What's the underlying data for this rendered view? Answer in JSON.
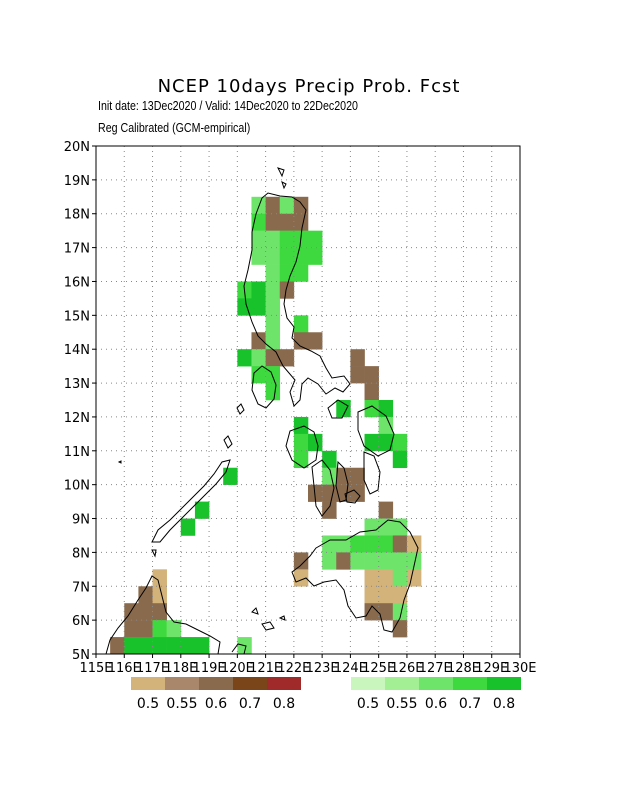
{
  "title": "NCEP 10days Precip Prob. Fcst",
  "subtitle1": "Init date: 13Dec2020 / Valid: 14Dec2020 to 22Dec2020",
  "subtitle2": "Reg Calibrated (GCM-empirical)",
  "map": {
    "lon_range": [
      115,
      130
    ],
    "lat_range": [
      5,
      20
    ],
    "grid": "dotted 1-degree",
    "lat_labels": [
      "5N",
      "6N",
      "7N",
      "8N",
      "9N",
      "10N",
      "11N",
      "12N",
      "13N",
      "14N",
      "15N",
      "16N",
      "17N",
      "18N",
      "19N",
      "20N"
    ],
    "lon_labels": [
      "115E",
      "116E",
      "117E",
      "118E",
      "119E",
      "120E",
      "121E",
      "122E",
      "123E",
      "124E",
      "125E",
      "126E",
      "127E",
      "128E",
      "129E",
      "130E"
    ],
    "cell_size_deg": 0.5
  },
  "legend_dry": {
    "colors": [
      "#d3b37a",
      "#a8876a",
      "#8a6a4d",
      "#7a4519",
      "#a02a2a"
    ],
    "labels": [
      "0.5",
      "0.55",
      "0.6",
      "0.7",
      "0.8"
    ]
  },
  "legend_wet": {
    "colors": [
      "#c8f6bc",
      "#a3ef93",
      "#6ee56a",
      "#3ed93e",
      "#18c22a"
    ],
    "labels": [
      "0.5",
      "0.55",
      "0.6",
      "0.7",
      "0.8"
    ]
  },
  "cells": [
    [
      120.5,
      18,
      3
    ],
    [
      121,
      18,
      2
    ],
    [
      121.5,
      18,
      3
    ],
    [
      122,
      18,
      2
    ],
    [
      120.5,
      17.5,
      4
    ],
    [
      121,
      17.5,
      2
    ],
    [
      121.5,
      17.5,
      2
    ],
    [
      122,
      17.5,
      2
    ],
    [
      120.5,
      17,
      3
    ],
    [
      121,
      17,
      3
    ],
    [
      121.5,
      17,
      4
    ],
    [
      122,
      17,
      4
    ],
    [
      122.5,
      17,
      4
    ],
    [
      120.5,
      16.5,
      3
    ],
    [
      121,
      16.5,
      3
    ],
    [
      121.5,
      16.5,
      4
    ],
    [
      122,
      16.5,
      4
    ],
    [
      122.5,
      16.5,
      4
    ],
    [
      121,
      16,
      3
    ],
    [
      121.5,
      16,
      4
    ],
    [
      122,
      16,
      4
    ],
    [
      120,
      15.5,
      4
    ],
    [
      120.5,
      15.5,
      5
    ],
    [
      121,
      15.5,
      3
    ],
    [
      121.5,
      15.5,
      2
    ],
    [
      120,
      15,
      5
    ],
    [
      120.5,
      15,
      5
    ],
    [
      121,
      15,
      3
    ],
    [
      121,
      14.5,
      3
    ],
    [
      122,
      14.5,
      4
    ],
    [
      120.5,
      14,
      2
    ],
    [
      121,
      14,
      3
    ],
    [
      122,
      14,
      2
    ],
    [
      122.5,
      14,
      2
    ],
    [
      120,
      13.5,
      5
    ],
    [
      120.5,
      13.5,
      3
    ],
    [
      121,
      13.5,
      2
    ],
    [
      121.5,
      13.5,
      2
    ],
    [
      124,
      13.5,
      2
    ],
    [
      120.5,
      13,
      4
    ],
    [
      121,
      13,
      4
    ],
    [
      124,
      13,
      2
    ],
    [
      124.5,
      13,
      2
    ],
    [
      121,
      12.5,
      4
    ],
    [
      124.5,
      12.5,
      2
    ],
    [
      123.5,
      12,
      5
    ],
    [
      124.5,
      12,
      4
    ],
    [
      125,
      12,
      5
    ],
    [
      122,
      11.5,
      5
    ],
    [
      125,
      11.5,
      3
    ],
    [
      122,
      11,
      4
    ],
    [
      122.5,
      11,
      5
    ],
    [
      124.5,
      11,
      5
    ],
    [
      125,
      11,
      5
    ],
    [
      125.5,
      11,
      4
    ],
    [
      122,
      10.5,
      4
    ],
    [
      123,
      10.5,
      5
    ],
    [
      125.5,
      10.5,
      5
    ],
    [
      119.5,
      10,
      5
    ],
    [
      123,
      10,
      3
    ],
    [
      123.5,
      10,
      2
    ],
    [
      124,
      10,
      2
    ],
    [
      122.5,
      9.5,
      2
    ],
    [
      123,
      9.5,
      2
    ],
    [
      123.5,
      9.5,
      2
    ],
    [
      124,
      9.5,
      2
    ],
    [
      118.5,
      9,
      5
    ],
    [
      123,
      9,
      2
    ],
    [
      125,
      9,
      2
    ],
    [
      118,
      8.5,
      5
    ],
    [
      124.5,
      8.5,
      3
    ],
    [
      125,
      8.5,
      3
    ],
    [
      125.5,
      8.5,
      3
    ],
    [
      123,
      8,
      3
    ],
    [
      123.5,
      8,
      3
    ],
    [
      124,
      8,
      4
    ],
    [
      124.5,
      8,
      4
    ],
    [
      125,
      8,
      4
    ],
    [
      125.5,
      8,
      2
    ],
    [
      126,
      8,
      1
    ],
    [
      122,
      7.5,
      2
    ],
    [
      123,
      7.5,
      3
    ],
    [
      123.5,
      7.5,
      2
    ],
    [
      124,
      7.5,
      3
    ],
    [
      124.5,
      7.5,
      3
    ],
    [
      125,
      7.5,
      3
    ],
    [
      125.5,
      7.5,
      3
    ],
    [
      126,
      7.5,
      3
    ],
    [
      122,
      7,
      1
    ],
    [
      124.5,
      7,
      1
    ],
    [
      125,
      7,
      1
    ],
    [
      125.5,
      7,
      3
    ],
    [
      126,
      7,
      1
    ],
    [
      117,
      7,
      1
    ],
    [
      116.5,
      6.5,
      2
    ],
    [
      117,
      6.5,
      1
    ],
    [
      124.5,
      6.5,
      1
    ],
    [
      125,
      6.5,
      1
    ],
    [
      125.5,
      6.5,
      1
    ],
    [
      116,
      6,
      2
    ],
    [
      116.5,
      6,
      2
    ],
    [
      117,
      6,
      2
    ],
    [
      124.5,
      6,
      2
    ],
    [
      125,
      6,
      2
    ],
    [
      125.5,
      6,
      3
    ],
    [
      116,
      5.5,
      2
    ],
    [
      116.5,
      5.5,
      2
    ],
    [
      117,
      5.5,
      4
    ],
    [
      117.5,
      5.5,
      3
    ],
    [
      125.5,
      5.5,
      2
    ],
    [
      115.5,
      5,
      2
    ],
    [
      116,
      5,
      5
    ],
    [
      116.5,
      5,
      5
    ],
    [
      117,
      5,
      5
    ],
    [
      117.5,
      5,
      5
    ],
    [
      118,
      5,
      5
    ],
    [
      118.5,
      5,
      5
    ],
    [
      120,
      5,
      3
    ]
  ],
  "cell_kinds": {
    "1": "dry-0.5",
    "2": "dry-0.55",
    "3": "wet-0.55",
    "4": "wet-0.6",
    "5": "wet-0.7"
  }
}
